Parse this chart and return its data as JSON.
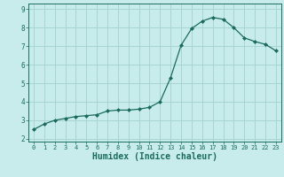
{
  "x": [
    0,
    1,
    2,
    3,
    4,
    5,
    6,
    7,
    8,
    9,
    10,
    11,
    12,
    13,
    14,
    15,
    16,
    17,
    18,
    19,
    20,
    21,
    22,
    23
  ],
  "y": [
    2.5,
    2.8,
    3.0,
    3.1,
    3.2,
    3.25,
    3.3,
    3.5,
    3.55,
    3.55,
    3.6,
    3.7,
    4.0,
    5.3,
    7.05,
    7.95,
    8.35,
    8.55,
    8.45,
    8.0,
    7.45,
    7.25,
    7.1,
    6.75
  ],
  "marker_style": "D",
  "marker_size": 2,
  "line_color": "#1a6b5e",
  "marker_color": "#1a6b5e",
  "bg_color": "#c8ecec",
  "grid_color": "#a8d4d4",
  "xlabel": "Humidex (Indice chaleur)",
  "xlabel_fontsize": 7,
  "xtick_labels": [
    "0",
    "1",
    "2",
    "3",
    "4",
    "5",
    "6",
    "7",
    "8",
    "9",
    "10",
    "11",
    "12",
    "13",
    "14",
    "15",
    "16",
    "17",
    "18",
    "19",
    "20",
    "21",
    "22",
    "23"
  ],
  "ytick_labels": [
    "2",
    "3",
    "4",
    "5",
    "6",
    "7",
    "8",
    "9"
  ],
  "ytick_values": [
    2,
    3,
    4,
    5,
    6,
    7,
    8,
    9
  ],
  "ylim": [
    1.85,
    9.3
  ],
  "xlim": [
    -0.5,
    23.5
  ]
}
